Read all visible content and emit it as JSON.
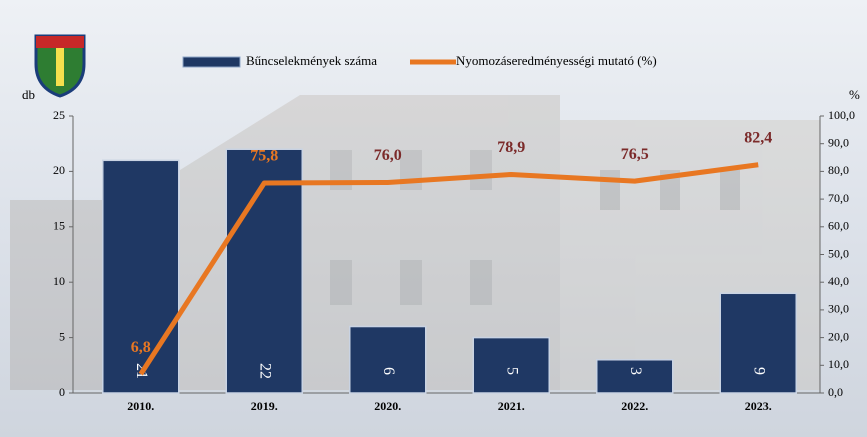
{
  "chart_data": {
    "type": "bar-line",
    "categories": [
      "2010.",
      "2019.",
      "2020.",
      "2021.",
      "2022.",
      "2023."
    ],
    "series": [
      {
        "name": "Bűncselekmények száma",
        "type": "bar",
        "color": "#1f3864",
        "values": [
          21,
          22,
          6,
          5,
          3,
          9
        ]
      },
      {
        "name": "Nyomozáseredményességi mutató (%)",
        "type": "line",
        "axis": "y2",
        "color": "#e87722",
        "values": [
          6.8,
          75.8,
          76.0,
          78.9,
          76.5,
          82.4
        ],
        "value_labels": [
          "6,8",
          "75,8",
          "76,0",
          "78,9",
          "76,5",
          "82,4"
        ],
        "label_colors": [
          "#e87722",
          "#e87722",
          "#7b2a2a",
          "#7b2a2a",
          "#7b2a2a",
          "#7b2a2a"
        ]
      }
    ],
    "ylabel": "db",
    "y2label": "%",
    "ylim": [
      0,
      25
    ],
    "yticks": [
      0,
      5,
      10,
      15,
      20,
      25
    ],
    "y2lim": [
      0,
      100
    ],
    "y2ticks": [
      {
        "value": 0,
        "label": "0,0"
      },
      {
        "value": 10,
        "label": "10,0"
      },
      {
        "value": 20,
        "label": "20,0"
      },
      {
        "value": 30,
        "label": "30,0"
      },
      {
        "value": 40,
        "label": "40,0"
      },
      {
        "value": 50,
        "label": "50,0"
      },
      {
        "value": 60,
        "label": "60,0"
      },
      {
        "value": 70,
        "label": "70,0"
      },
      {
        "value": 80,
        "label": "80,0"
      },
      {
        "value": 90,
        "label": "90,0"
      },
      {
        "value": 100,
        "label": "100,0"
      }
    ]
  }
}
